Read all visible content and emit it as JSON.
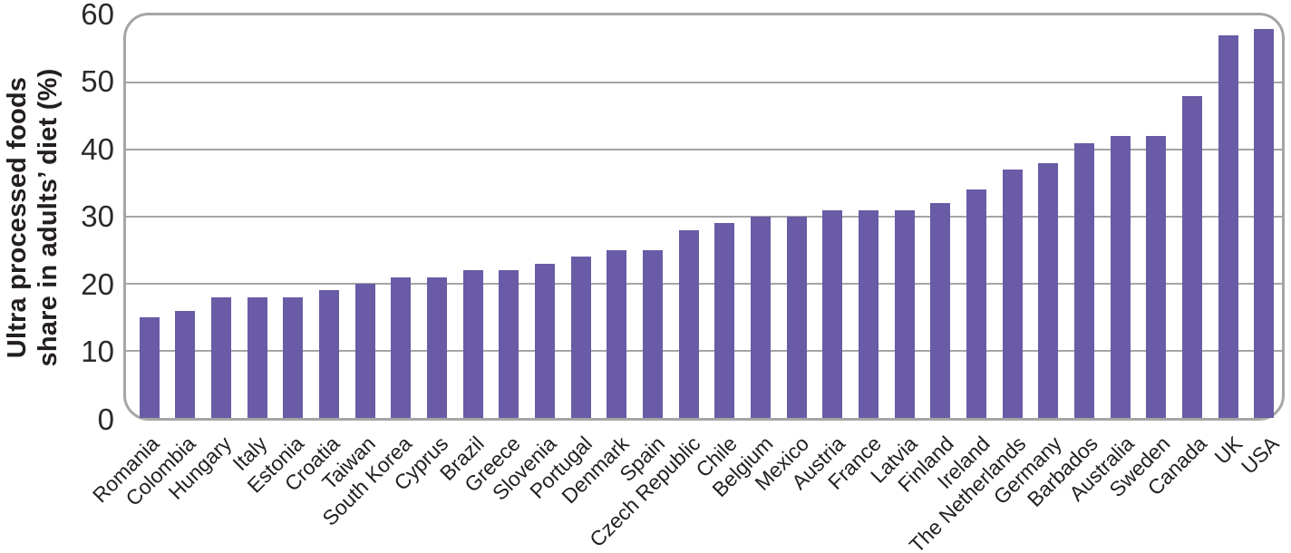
{
  "chart_data": {
    "type": "bar",
    "title": "",
    "ylabel": "Ultra processed foods share in adults’ diet (%)",
    "ylabel_lines": [
      "Ultra processed foods",
      "share in adults’ diet (%)"
    ],
    "xlabel": "",
    "categories": [
      "Romania",
      "Colombia",
      "Hungary",
      "Italy",
      "Estonia",
      "Croatia",
      "Taiwan",
      "South Korea",
      "Cyprus",
      "Brazil",
      "Greece",
      "Slovenia",
      "Portugal",
      "Denmark",
      "Spain",
      "Czech Republic",
      "Chile",
      "Belgium",
      "Mexico",
      "Austria",
      "France",
      "Latvia",
      "Finland",
      "Ireland",
      "The Netherlands",
      "Germany",
      "Barbados",
      "Australia",
      "Sweden",
      "Canada",
      "UK",
      "USA"
    ],
    "values": [
      15,
      16,
      18,
      18,
      18,
      19,
      20,
      21,
      21,
      22,
      22,
      23,
      24,
      25,
      25,
      28,
      29,
      30,
      30,
      31,
      31,
      31,
      32,
      34,
      37,
      38,
      41,
      42,
      42,
      48,
      57,
      58
    ],
    "ylim": [
      0,
      60
    ],
    "yticks": [
      0,
      10,
      20,
      30,
      40,
      50,
      60
    ],
    "grid": true,
    "legend": "none",
    "colors": {
      "bar": "#6a5ba6",
      "grid": "#a5a5a5",
      "text": "#231f20"
    }
  }
}
